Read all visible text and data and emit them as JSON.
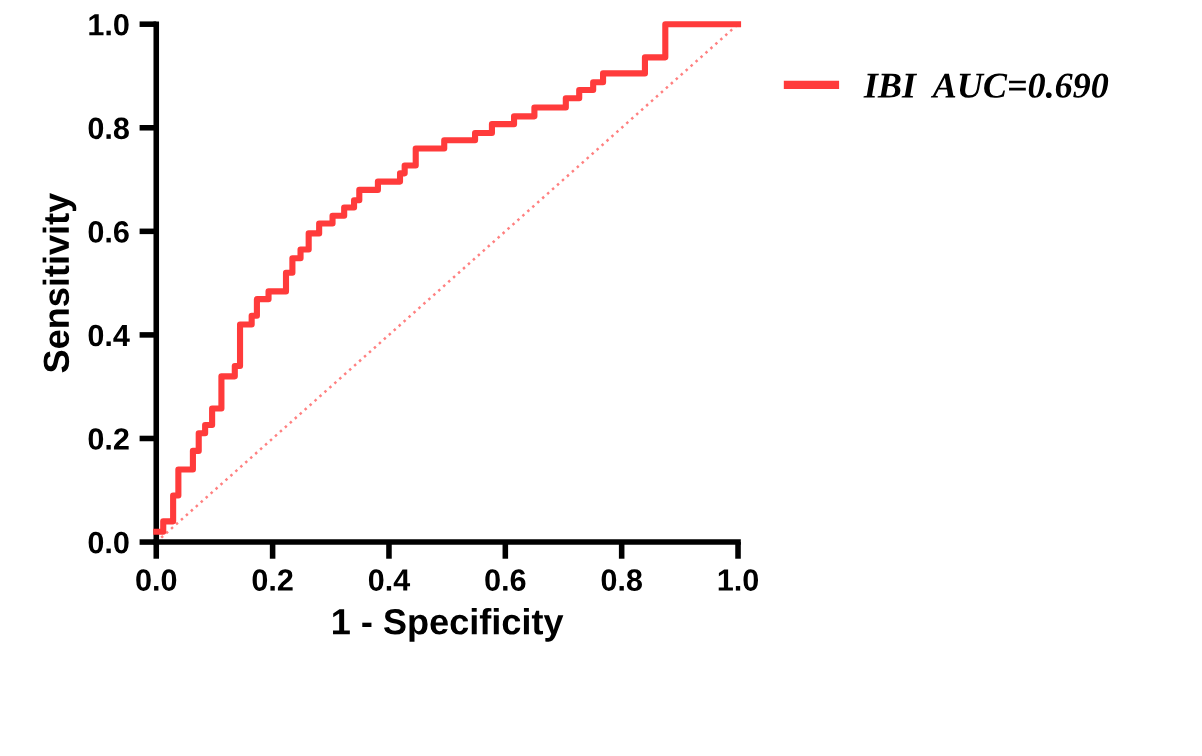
{
  "chart_data": {
    "type": "line",
    "xlabel": "1 - Specificity",
    "ylabel": "Sensitivity",
    "xlim": [
      0,
      1
    ],
    "ylim": [
      0,
      1
    ],
    "xticks": [
      {
        "value": 0,
        "label": "0.0"
      },
      0.2,
      0.4,
      0.6,
      0.8,
      {
        "value": 1,
        "label": "1.0"
      }
    ],
    "yticks": [
      {
        "value": 0,
        "label": "0.0"
      },
      0.2,
      0.4,
      0.6,
      0.8,
      {
        "value": 1,
        "label": "1.0"
      }
    ],
    "grid": false,
    "legend": "top right",
    "marker": "none",
    "series": [
      {
        "name": "IBI  AUC=0.690",
        "type": "step",
        "color": "#ff3b3b",
        "line_style": "solid",
        "x": [
          0,
          0.012,
          0.029,
          0.038,
          0.063,
          0.073,
          0.084,
          0.096,
          0.112,
          0.135,
          0.144,
          0.164,
          0.173,
          0.193,
          0.223,
          0.234,
          0.248,
          0.262,
          0.28,
          0.303,
          0.323,
          0.34,
          0.349,
          0.381,
          0.419,
          0.427,
          0.446,
          0.495,
          0.548,
          0.577,
          0.615,
          0.65,
          0.704,
          0.727,
          0.751,
          0.768,
          0.84,
          0.875,
          1.0
        ],
        "values": [
          0.02,
          0.04,
          0.09,
          0.14,
          0.176,
          0.21,
          0.226,
          0.258,
          0.32,
          0.34,
          0.42,
          0.437,
          0.469,
          0.484,
          0.52,
          0.548,
          0.565,
          0.596,
          0.615,
          0.63,
          0.646,
          0.66,
          0.68,
          0.696,
          0.712,
          0.727,
          0.76,
          0.776,
          0.79,
          0.807,
          0.822,
          0.839,
          0.857,
          0.873,
          0.888,
          0.905,
          0.936,
          1.0,
          1.0
        ]
      },
      {
        "color": "#ff8080",
        "line_style": "dotted",
        "x": [
          0,
          1
        ],
        "values": [
          0,
          1
        ]
      }
    ]
  }
}
